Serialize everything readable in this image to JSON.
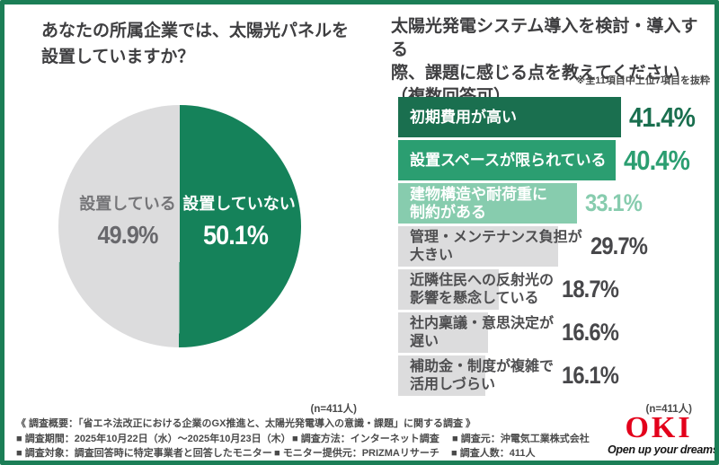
{
  "colors": {
    "frame_border": "#1b7e56",
    "dark_green": "#1a6f4f",
    "mid_green": "#2b9e71",
    "light_green": "#87ccae",
    "pie_green": "#15825a",
    "bar_gray": "#dcdcdd",
    "title_text": "#3e3e40",
    "muted_text": "#4a4a4a",
    "oki_red": "#e3001b"
  },
  "left_panel": {
    "title": "あなたの所属企業では、太陽光パネルを\n設置していますか？",
    "n_label": "(n=411人)"
  },
  "right_panel": {
    "title": "太陽光発電システム導入を検討・導入する\n際、課題に感じる点を教えてください\n（複数回答可）",
    "note": "※全11項目中上位7項目を抜粋",
    "n_label": "(n=411人)",
    "bars": [
      {
        "label": "初期費用が高い",
        "pct": "41.4%",
        "variant": "dark",
        "bar_color": "#1a6f4f",
        "label_color": "#ffffff",
        "pct_color": "#1a6f4f"
      },
      {
        "label": "設置スペースが限られている",
        "pct": "40.4%",
        "variant": "mid",
        "bar_color": "#2b9e71",
        "label_color": "#ffffff",
        "pct_color": "#2b9e71"
      },
      {
        "label": "建物構造や耐荷重に\n制約がある",
        "pct": "33.1%",
        "variant": "light",
        "bar_color": "#87ccae",
        "label_color": "#ffffff",
        "pct_color": "#87ccae"
      },
      {
        "label": "管理・メンテナンス負担が\n大きい",
        "pct": "29.7%",
        "variant": "gray",
        "bar_color": "#dcdcdd",
        "label_color": "#4e4e50",
        "pct_color": "#47474a"
      },
      {
        "label": "近隣住民への反射光の\n影響を懸念している",
        "pct": "18.7%",
        "variant": "gray",
        "bar_color": "#dcdcdd",
        "label_color": "#4e4e50",
        "pct_color": "#47474a"
      },
      {
        "label": "社内稟議・意思決定が\n遅い",
        "pct": "16.6%",
        "variant": "gray",
        "bar_color": "#dcdcdd",
        "label_color": "#4e4e50",
        "pct_color": "#47474a"
      },
      {
        "label": "補助金・制度が複雑で\n活用しづらい",
        "pct": "16.1%",
        "variant": "gray",
        "bar_color": "#dcdcdd",
        "label_color": "#4e4e50",
        "pct_color": "#47474a"
      }
    ]
  },
  "footer": {
    "summary": "《 調査概要：「省エネ法改正における企業のGX推進と、太陽光発電導入の意識・課題」に関する調査 》",
    "rows": [
      [
        "■ 調査期間：2025年10月22日（水）～2025年10月23日（木）",
        "■ 調査方法：インターネット調査",
        "■ 調査元：沖電気工業株式会社"
      ],
      [
        "■ 調査対象：調査回答時に特定事業者と回答したモニター",
        "■ モニター提供元：PRIZMAリサーチ",
        "■ 調査人数：411人"
      ]
    ]
  },
  "logo": {
    "text": "OKI",
    "tagline": "Open up your dreams"
  },
  "chart_data": [
    {
      "type": "pie",
      "title": "あなたの所属企業では、太陽光パネルを設置していますか？",
      "labels": [
        "設置していない",
        "設置している"
      ],
      "values": [
        50.1,
        49.9
      ],
      "value_labels": [
        "50.1%",
        "49.9%"
      ],
      "colors": [
        "#15825a",
        "#dcdcdd"
      ],
      "unit": "%",
      "start_angle_deg": 0,
      "direction": "clockwise",
      "n_label": "(n=411人)"
    },
    {
      "type": "bar",
      "orientation": "horizontal",
      "title": "太陽光発電システム導入を検討・導入する際、課題に感じる点を教えてください（複数回答可）",
      "note": "※全11項目中上位7項目を抜粋",
      "categories": [
        "初期費用が高い",
        "設置スペースが限られている",
        "建物構造や耐荷重に制約がある",
        "管理・メンテナンス負担が大きい",
        "近隣住民への反射光の影響を懸念している",
        "社内稟議・意思決定が遅い",
        "補助金・制度が複雑で活用しづらい"
      ],
      "values": [
        41.4,
        40.4,
        33.1,
        29.7,
        18.7,
        16.6,
        16.1
      ],
      "value_labels": [
        "41.4%",
        "40.4%",
        "33.1%",
        "29.7%",
        "18.7%",
        "16.6%",
        "16.1%"
      ],
      "unit": "%",
      "xlim": [
        0,
        45
      ],
      "grid": false,
      "legend": false,
      "n_label": "(n=411人)"
    }
  ]
}
